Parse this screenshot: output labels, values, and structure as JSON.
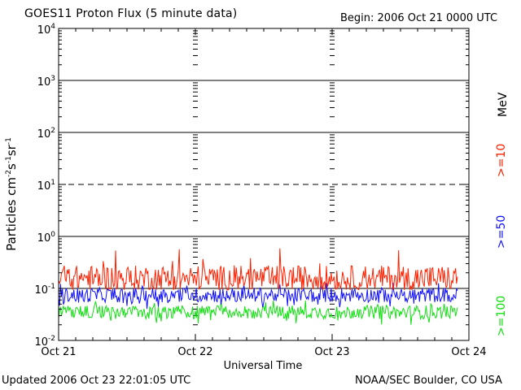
{
  "header": {
    "title": "GOES11 Proton Flux (5 minute data)",
    "begin": "Begin: 2006 Oct 21 0000 UTC"
  },
  "footer": {
    "updated": "Updated 2006 Oct 23 22:01:05 UTC",
    "credit": "NOAA/SEC Boulder, CO USA"
  },
  "channel_unit": "MeV",
  "colors": {
    "ch10": "#ff2000",
    "ch50": "#1010ff",
    "ch100": "#10e010"
  },
  "chart_data": {
    "type": "line",
    "title": "GOES11 Proton Flux (5 minute data)",
    "xlabel": "Universal Time",
    "ylabel": "Particles cm-2 s-1 sr-1",
    "yscale": "log",
    "ylim": [
      0.01,
      10000
    ],
    "xlim": [
      "2006-10-21 00:00",
      "2006-10-24 00:00"
    ],
    "x_ticks": [
      "Oct 21",
      "Oct 22",
      "Oct 23",
      "Oct 24"
    ],
    "y_ticks": [
      0.01,
      0.1,
      1,
      10,
      100,
      1000,
      10000
    ],
    "y_tick_labels": [
      {
        "base": "10",
        "exp": "-2"
      },
      {
        "base": "10",
        "exp": "-1"
      },
      {
        "base": "10",
        "exp": "0"
      },
      {
        "base": "10",
        "exp": "1"
      },
      {
        "base": "10",
        "exp": "2"
      },
      {
        "base": "10",
        "exp": "3"
      },
      {
        "base": "10",
        "exp": "4"
      }
    ],
    "threshold_line": 10,
    "data_end": "2006-10-23 22:00",
    "sample_interval_min": 5,
    "series": [
      {
        "name": ">=10",
        "typical": 0.16,
        "min": 0.09,
        "max": 0.65
      },
      {
        "name": ">=50",
        "typical": 0.075,
        "min": 0.04,
        "max": 0.13
      },
      {
        "name": ">=100",
        "typical": 0.035,
        "min": 0.02,
        "max": 0.06
      }
    ],
    "legend": "right-side vertical labels",
    "grid": true
  }
}
